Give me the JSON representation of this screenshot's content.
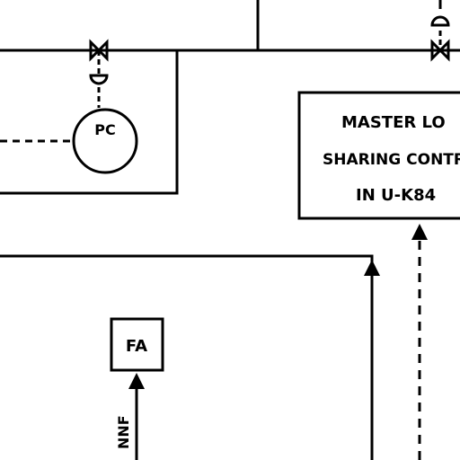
{
  "instrument_pc": {
    "tag": "PC"
  },
  "control_box": {
    "line1": "MASTER LO",
    "line2": "SHARING CONTR",
    "line3": "IN U-K84"
  },
  "instrument_fa": {
    "tag": "FA"
  },
  "vertical_label": "NNF",
  "colors": {
    "line": "#000000",
    "background": "#ffffff"
  }
}
